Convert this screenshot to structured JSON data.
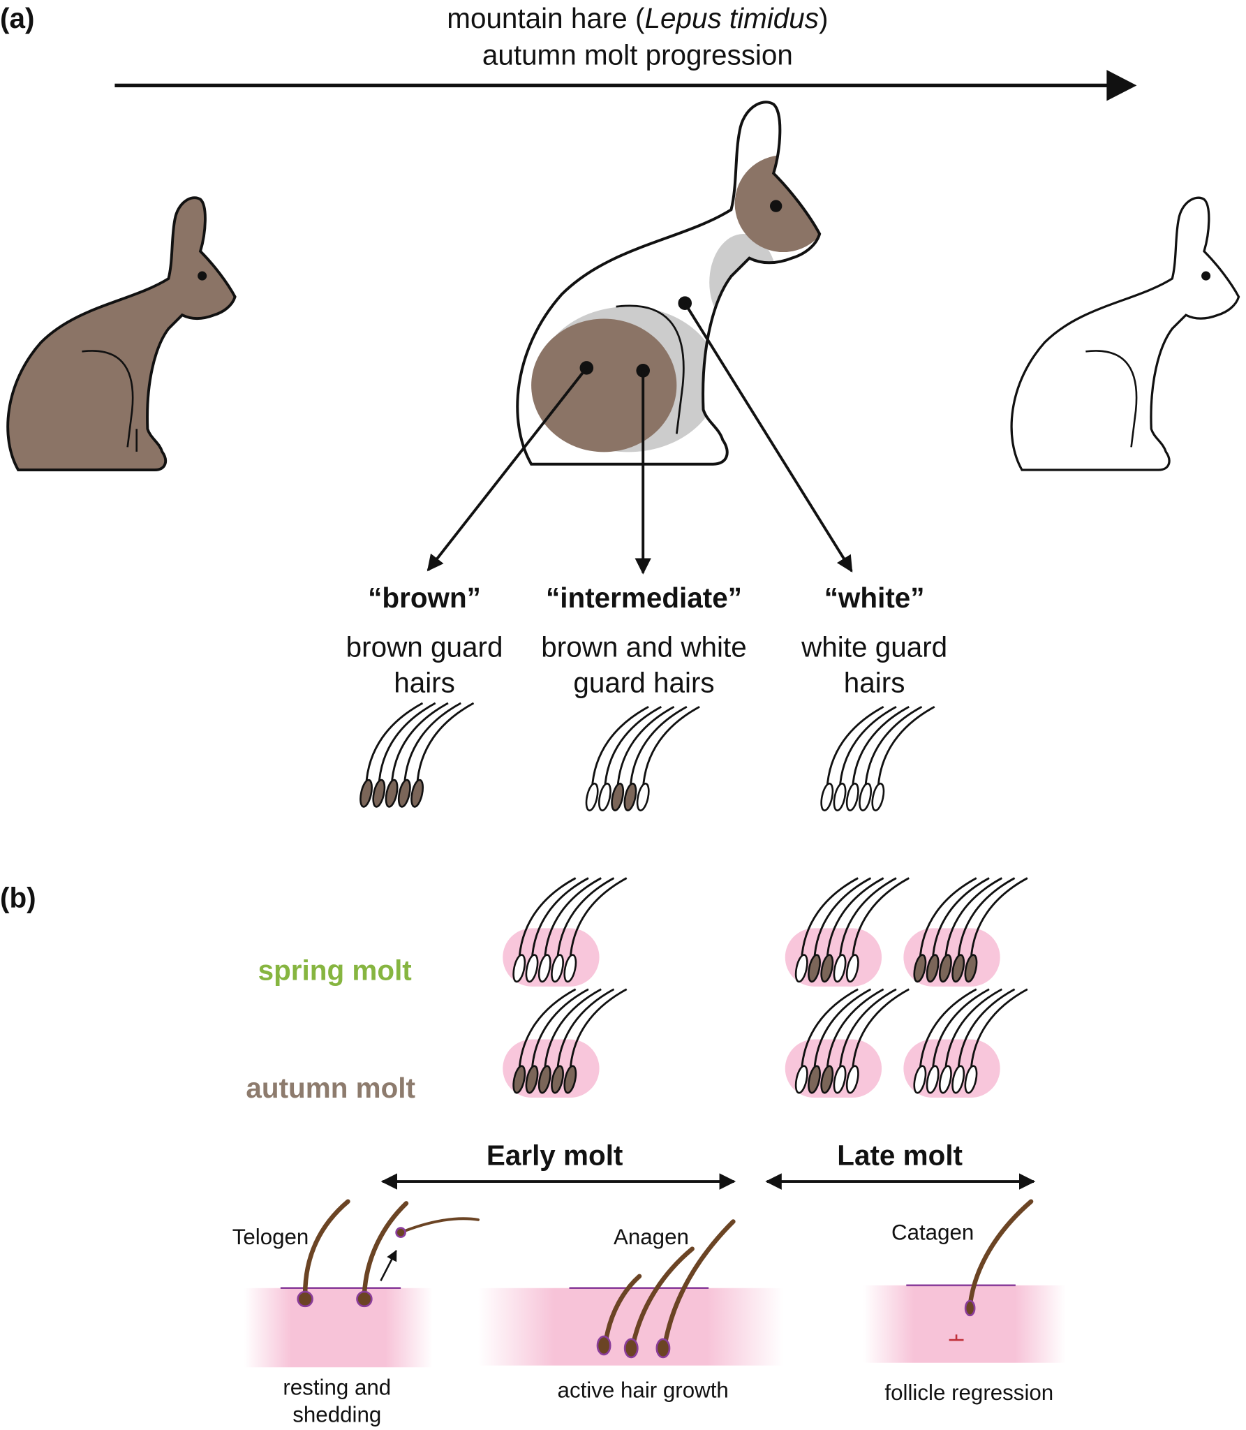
{
  "panel_a": {
    "label": "(a)",
    "title": {
      "line1": {
        "before": "mountain hare (",
        "species": "Lepus timidus",
        "after": ")"
      },
      "line2": "autumn molt progression"
    },
    "categories": [
      {
        "name": "“brown”",
        "description": [
          "brown guard",
          "hairs"
        ]
      },
      {
        "name": "“intermediate”",
        "description": [
          "brown and white",
          "guard hairs"
        ]
      },
      {
        "name": "“white”",
        "description": [
          "white guard",
          "hairs"
        ]
      }
    ]
  },
  "panel_b": {
    "label": "(b)",
    "rows": [
      "spring molt",
      "autumn molt"
    ],
    "phases": [
      "Early molt",
      "Late molt"
    ],
    "stages": [
      {
        "name": "Telogen",
        "description": [
          "resting and",
          "shedding"
        ]
      },
      {
        "name": "Anagen",
        "description": [
          "active hair growth"
        ]
      },
      {
        "name": "Catagen",
        "description": [
          "follicle regression"
        ]
      }
    ]
  }
}
